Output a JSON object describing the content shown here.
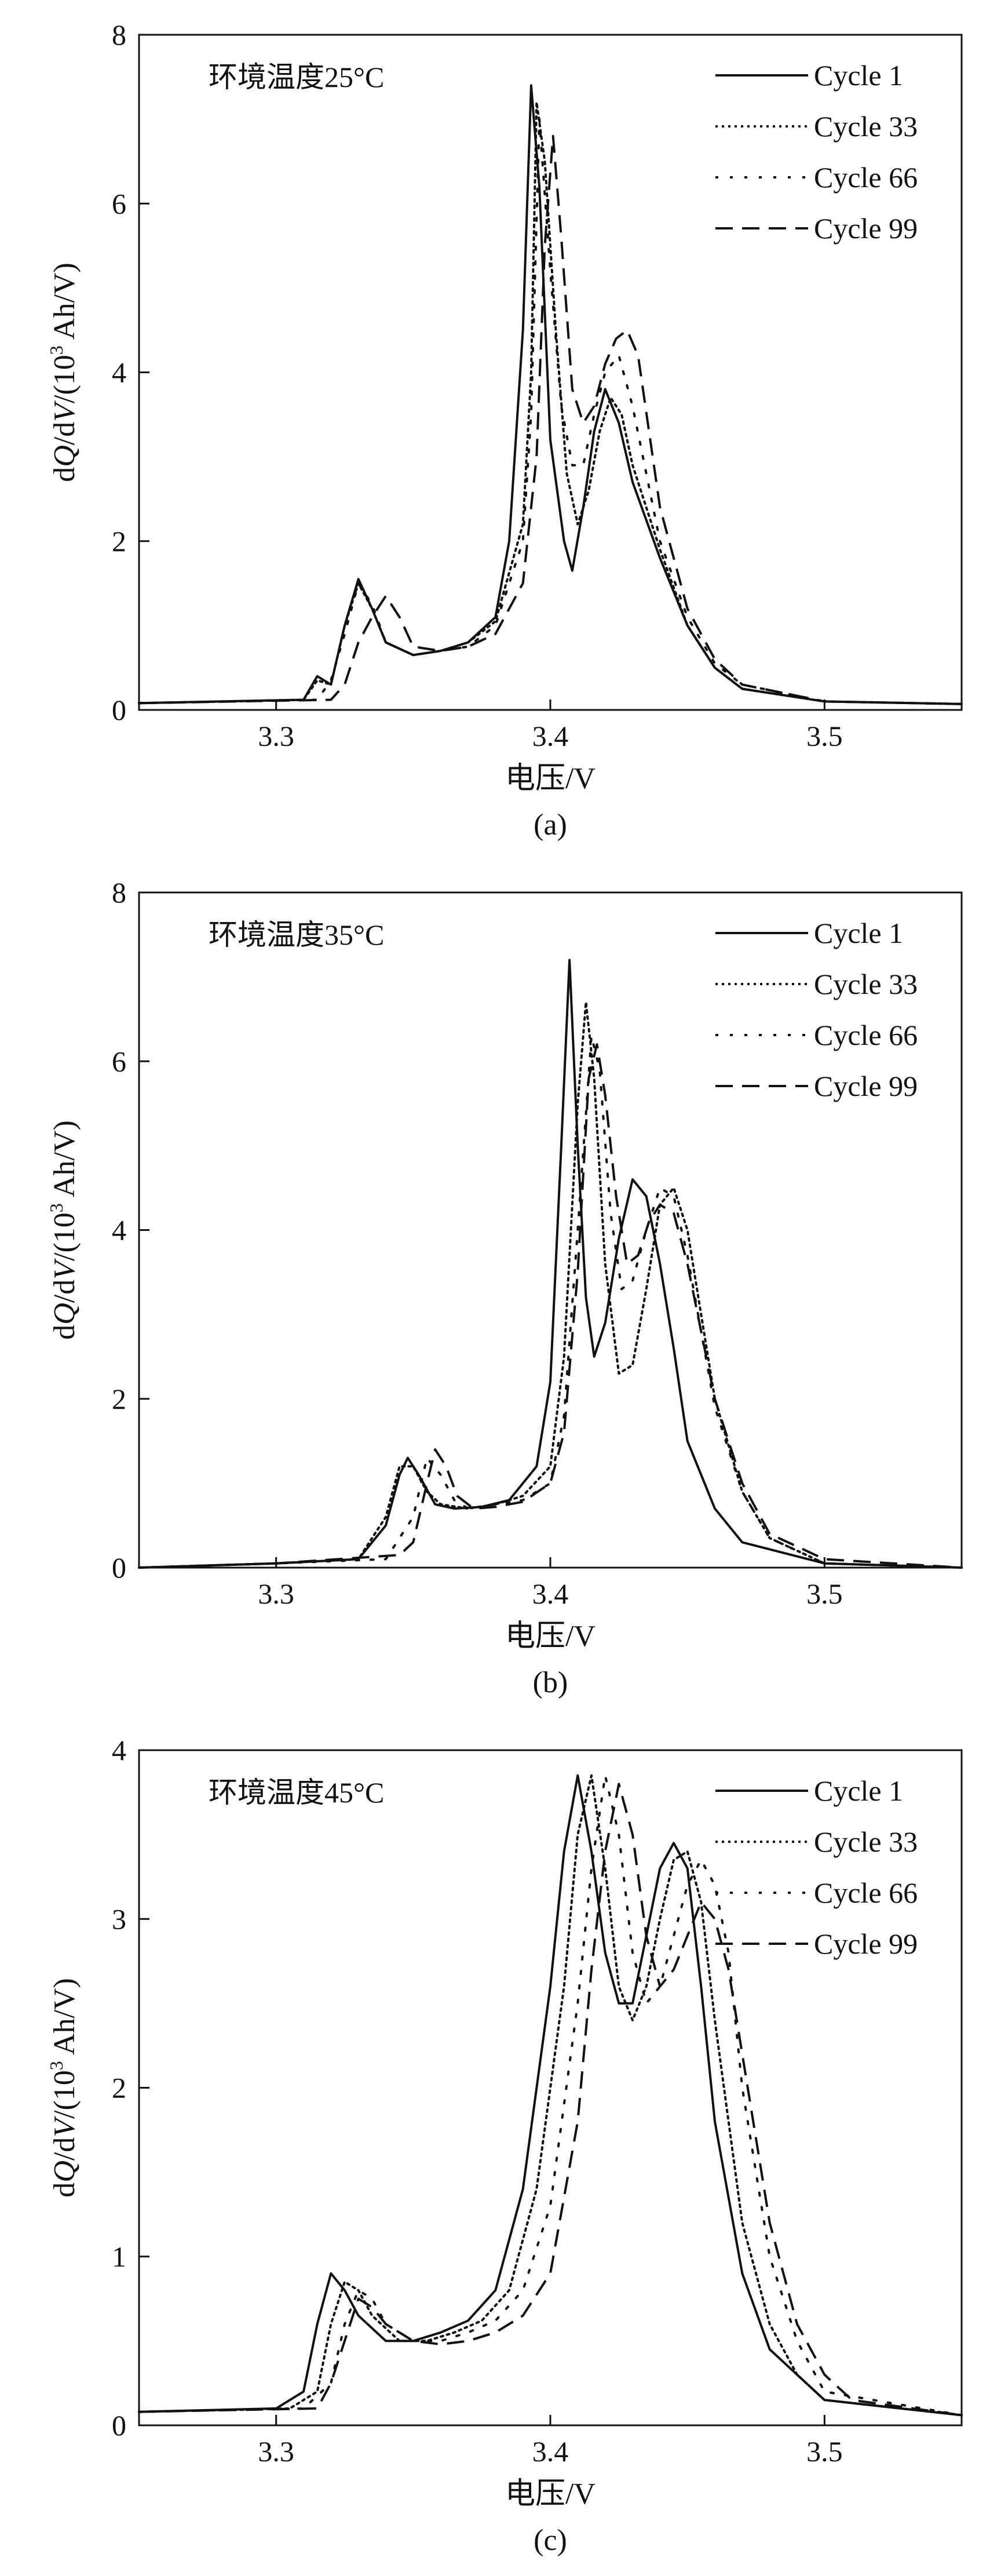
{
  "figure": {
    "x_axis_label": "电压/V",
    "y_axis_label_parts": [
      "d",
      "Q",
      "/d",
      "V",
      "/(10",
      "3",
      " Ah/V)"
    ]
  },
  "legend_entries": [
    "Cycle 1",
    "Cycle 33",
    "Cycle 66",
    "Cycle 99"
  ],
  "chart_data": [
    {
      "type": "line",
      "panel_label": "(a)",
      "annotation": "环境温度25°C",
      "xlabel": "电压/V",
      "ylabel": "dQ/dV/(10³ Ah/V)",
      "xlim": [
        3.25,
        3.55
      ],
      "ylim": [
        0,
        8
      ],
      "xticks": [
        3.3,
        3.4,
        3.5
      ],
      "yticks": [
        0,
        2,
        4,
        6,
        8
      ],
      "series": [
        {
          "name": "Cycle 1",
          "style": "solid",
          "x": [
            3.25,
            3.31,
            3.315,
            3.32,
            3.325,
            3.33,
            3.335,
            3.34,
            3.35,
            3.36,
            3.37,
            3.38,
            3.385,
            3.39,
            3.393,
            3.396,
            3.4,
            3.405,
            3.408,
            3.412,
            3.416,
            3.42,
            3.425,
            3.43,
            3.44,
            3.45,
            3.46,
            3.47,
            3.5,
            3.55
          ],
          "y": [
            0.08,
            0.12,
            0.4,
            0.3,
            1.0,
            1.55,
            1.2,
            0.8,
            0.65,
            0.7,
            0.8,
            1.1,
            2.0,
            4.5,
            7.4,
            6.2,
            3.2,
            2.0,
            1.65,
            2.4,
            3.3,
            3.8,
            3.4,
            2.7,
            1.8,
            1.0,
            0.5,
            0.25,
            0.1,
            0.07
          ]
        },
        {
          "name": "Cycle 33",
          "style": "dotted",
          "x": [
            3.25,
            3.31,
            3.315,
            3.32,
            3.325,
            3.33,
            3.335,
            3.34,
            3.35,
            3.36,
            3.37,
            3.38,
            3.39,
            3.393,
            3.395,
            3.398,
            3.402,
            3.406,
            3.41,
            3.414,
            3.418,
            3.422,
            3.426,
            3.43,
            3.44,
            3.45,
            3.46,
            3.47,
            3.5,
            3.55
          ],
          "y": [
            0.08,
            0.12,
            0.35,
            0.3,
            1.0,
            1.5,
            1.2,
            0.8,
            0.65,
            0.7,
            0.8,
            1.05,
            2.2,
            4.0,
            7.2,
            6.5,
            4.5,
            2.8,
            2.2,
            2.6,
            3.3,
            3.7,
            3.5,
            2.9,
            1.9,
            1.0,
            0.5,
            0.25,
            0.1,
            0.07
          ]
        },
        {
          "name": "Cycle 66",
          "style": "dotted-sparse",
          "x": [
            3.25,
            3.315,
            3.32,
            3.325,
            3.33,
            3.335,
            3.34,
            3.35,
            3.36,
            3.37,
            3.38,
            3.39,
            3.393,
            3.396,
            3.4,
            3.404,
            3.408,
            3.412,
            3.416,
            3.42,
            3.425,
            3.43,
            3.435,
            3.44,
            3.45,
            3.46,
            3.47,
            3.5,
            3.55
          ],
          "y": [
            0.08,
            0.12,
            0.35,
            0.9,
            1.5,
            1.25,
            0.8,
            0.65,
            0.7,
            0.75,
            1.0,
            2.0,
            3.5,
            7.0,
            5.2,
            3.6,
            2.9,
            2.9,
            3.5,
            4.0,
            4.2,
            3.6,
            2.8,
            2.0,
            1.1,
            0.55,
            0.3,
            0.1,
            0.07
          ]
        },
        {
          "name": "Cycle 99",
          "style": "dashed",
          "x": [
            3.25,
            3.32,
            3.325,
            3.33,
            3.335,
            3.34,
            3.345,
            3.35,
            3.36,
            3.37,
            3.38,
            3.39,
            3.395,
            3.398,
            3.401,
            3.404,
            3.408,
            3.412,
            3.416,
            3.42,
            3.424,
            3.428,
            3.432,
            3.436,
            3.44,
            3.45,
            3.46,
            3.47,
            3.5,
            3.55
          ],
          "y": [
            0.08,
            0.12,
            0.3,
            0.8,
            1.1,
            1.35,
            1.1,
            0.75,
            0.7,
            0.75,
            0.9,
            1.5,
            3.0,
            5.5,
            6.8,
            5.6,
            3.8,
            3.4,
            3.6,
            4.1,
            4.4,
            4.5,
            4.2,
            3.3,
            2.4,
            1.2,
            0.6,
            0.3,
            0.1,
            0.07
          ]
        }
      ]
    },
    {
      "type": "line",
      "panel_label": "(b)",
      "annotation": "环境温度35°C",
      "xlabel": "电压/V",
      "ylabel": "dQ/dV/(10³ Ah/V)",
      "xlim": [
        3.25,
        3.55
      ],
      "ylim": [
        0,
        8
      ],
      "xticks": [
        3.3,
        3.4,
        3.5
      ],
      "yticks": [
        0,
        2,
        4,
        6,
        8
      ],
      "series": [
        {
          "name": "Cycle 1",
          "style": "solid",
          "x": [
            3.25,
            3.3,
            3.33,
            3.34,
            3.345,
            3.348,
            3.352,
            3.358,
            3.365,
            3.375,
            3.385,
            3.395,
            3.4,
            3.404,
            3.407,
            3.41,
            3.413,
            3.416,
            3.42,
            3.425,
            3.43,
            3.435,
            3.44,
            3.445,
            3.45,
            3.46,
            3.47,
            3.5,
            3.55
          ],
          "y": [
            0.0,
            0.05,
            0.1,
            0.5,
            1.1,
            1.3,
            1.1,
            0.75,
            0.7,
            0.72,
            0.8,
            1.2,
            2.2,
            5.0,
            7.2,
            5.0,
            3.2,
            2.5,
            2.9,
            3.9,
            4.6,
            4.4,
            3.6,
            2.6,
            1.5,
            0.7,
            0.3,
            0.05,
            0.0
          ]
        },
        {
          "name": "Cycle 33",
          "style": "dotted",
          "x": [
            3.25,
            3.3,
            3.33,
            3.34,
            3.345,
            3.35,
            3.355,
            3.36,
            3.37,
            3.38,
            3.39,
            3.4,
            3.405,
            3.41,
            3.413,
            3.416,
            3.42,
            3.425,
            3.43,
            3.435,
            3.44,
            3.445,
            3.45,
            3.455,
            3.46,
            3.47,
            3.48,
            3.5,
            3.55
          ],
          "y": [
            0.0,
            0.05,
            0.1,
            0.6,
            1.2,
            1.2,
            0.9,
            0.75,
            0.7,
            0.75,
            0.85,
            1.2,
            2.5,
            5.5,
            6.7,
            5.8,
            3.6,
            2.3,
            2.4,
            3.3,
            4.3,
            4.5,
            4.0,
            3.0,
            2.0,
            0.9,
            0.35,
            0.05,
            0.0
          ]
        },
        {
          "name": "Cycle 66",
          "style": "dotted-sparse",
          "x": [
            3.25,
            3.3,
            3.34,
            3.35,
            3.355,
            3.36,
            3.365,
            3.37,
            3.38,
            3.39,
            3.4,
            3.405,
            3.41,
            3.415,
            3.418,
            3.422,
            3.426,
            3.43,
            3.435,
            3.44,
            3.445,
            3.45,
            3.455,
            3.46,
            3.47,
            3.48,
            3.5,
            3.55
          ],
          "y": [
            0.0,
            0.05,
            0.1,
            0.6,
            1.3,
            1.1,
            0.8,
            0.7,
            0.75,
            0.8,
            1.0,
            1.8,
            4.0,
            6.3,
            5.9,
            4.2,
            3.3,
            3.4,
            4.0,
            4.5,
            4.4,
            3.7,
            2.8,
            1.9,
            0.9,
            0.35,
            0.05,
            0.0
          ]
        },
        {
          "name": "Cycle 99",
          "style": "dashed",
          "x": [
            3.25,
            3.3,
            3.345,
            3.35,
            3.355,
            3.358,
            3.362,
            3.366,
            3.372,
            3.38,
            3.39,
            3.4,
            3.405,
            3.41,
            3.414,
            3.417,
            3.42,
            3.424,
            3.428,
            3.432,
            3.436,
            3.44,
            3.445,
            3.45,
            3.455,
            3.46,
            3.47,
            3.48,
            3.5,
            3.55
          ],
          "y": [
            0.0,
            0.05,
            0.15,
            0.3,
            1.0,
            1.4,
            1.2,
            0.85,
            0.7,
            0.72,
            0.78,
            1.0,
            1.6,
            3.5,
            5.8,
            6.2,
            5.6,
            4.4,
            3.6,
            3.7,
            4.1,
            4.3,
            4.2,
            3.6,
            2.8,
            2.0,
            1.0,
            0.4,
            0.1,
            0.0
          ]
        }
      ]
    },
    {
      "type": "line",
      "panel_label": "(c)",
      "annotation": "环境温度45°C",
      "xlabel": "电压/V",
      "ylabel": "dQ/dV/(10³ Ah/V)",
      "xlim": [
        3.25,
        3.55
      ],
      "ylim": [
        0,
        4
      ],
      "xticks": [
        3.3,
        3.4,
        3.5
      ],
      "yticks": [
        0,
        1,
        2,
        3,
        4
      ],
      "series": [
        {
          "name": "Cycle 1",
          "style": "solid",
          "x": [
            3.25,
            3.3,
            3.31,
            3.315,
            3.32,
            3.325,
            3.33,
            3.34,
            3.35,
            3.36,
            3.37,
            3.38,
            3.39,
            3.4,
            3.405,
            3.41,
            3.415,
            3.42,
            3.425,
            3.43,
            3.435,
            3.44,
            3.445,
            3.45,
            3.455,
            3.46,
            3.47,
            3.48,
            3.5,
            3.55
          ],
          "y": [
            0.08,
            0.1,
            0.2,
            0.6,
            0.9,
            0.8,
            0.65,
            0.5,
            0.5,
            0.55,
            0.62,
            0.8,
            1.4,
            2.6,
            3.4,
            3.85,
            3.4,
            2.8,
            2.5,
            2.5,
            2.9,
            3.3,
            3.45,
            3.3,
            2.6,
            1.8,
            0.9,
            0.45,
            0.15,
            0.06
          ]
        },
        {
          "name": "Cycle 33",
          "style": "dotted",
          "x": [
            3.25,
            3.305,
            3.315,
            3.32,
            3.325,
            3.33,
            3.335,
            3.345,
            3.355,
            3.365,
            3.375,
            3.385,
            3.395,
            3.405,
            3.41,
            3.415,
            3.42,
            3.425,
            3.43,
            3.435,
            3.44,
            3.445,
            3.45,
            3.455,
            3.46,
            3.47,
            3.48,
            3.49,
            3.5,
            3.55
          ],
          "y": [
            0.08,
            0.1,
            0.2,
            0.6,
            0.85,
            0.8,
            0.65,
            0.5,
            0.5,
            0.55,
            0.62,
            0.8,
            1.4,
            2.6,
            3.5,
            3.85,
            3.3,
            2.6,
            2.4,
            2.6,
            3.0,
            3.35,
            3.4,
            3.1,
            2.4,
            1.2,
            0.6,
            0.3,
            0.15,
            0.06
          ]
        },
        {
          "name": "Cycle 66",
          "style": "dotted-sparse",
          "x": [
            3.25,
            3.31,
            3.32,
            3.325,
            3.33,
            3.335,
            3.34,
            3.35,
            3.36,
            3.37,
            3.38,
            3.39,
            3.4,
            3.41,
            3.415,
            3.42,
            3.425,
            3.43,
            3.435,
            3.44,
            3.445,
            3.45,
            3.455,
            3.46,
            3.465,
            3.47,
            3.48,
            3.49,
            3.5,
            3.55
          ],
          "y": [
            0.08,
            0.1,
            0.25,
            0.6,
            0.8,
            0.75,
            0.6,
            0.5,
            0.5,
            0.55,
            0.62,
            0.8,
            1.3,
            2.5,
            3.3,
            3.85,
            3.5,
            2.8,
            2.5,
            2.6,
            2.9,
            3.2,
            3.35,
            3.2,
            2.8,
            2.0,
            1.0,
            0.5,
            0.2,
            0.06
          ]
        },
        {
          "name": "Cycle 99",
          "style": "dashed",
          "x": [
            3.25,
            3.315,
            3.32,
            3.325,
            3.33,
            3.335,
            3.34,
            3.35,
            3.36,
            3.37,
            3.38,
            3.39,
            3.4,
            3.41,
            3.415,
            3.42,
            3.425,
            3.43,
            3.435,
            3.44,
            3.445,
            3.45,
            3.455,
            3.46,
            3.465,
            3.47,
            3.48,
            3.49,
            3.5,
            3.51,
            3.55
          ],
          "y": [
            0.08,
            0.1,
            0.25,
            0.5,
            0.75,
            0.7,
            0.6,
            0.5,
            0.48,
            0.5,
            0.55,
            0.65,
            0.9,
            1.8,
            2.7,
            3.4,
            3.8,
            3.5,
            2.9,
            2.6,
            2.7,
            2.9,
            3.1,
            3.0,
            2.7,
            2.2,
            1.2,
            0.6,
            0.3,
            0.15,
            0.06
          ]
        }
      ]
    }
  ]
}
